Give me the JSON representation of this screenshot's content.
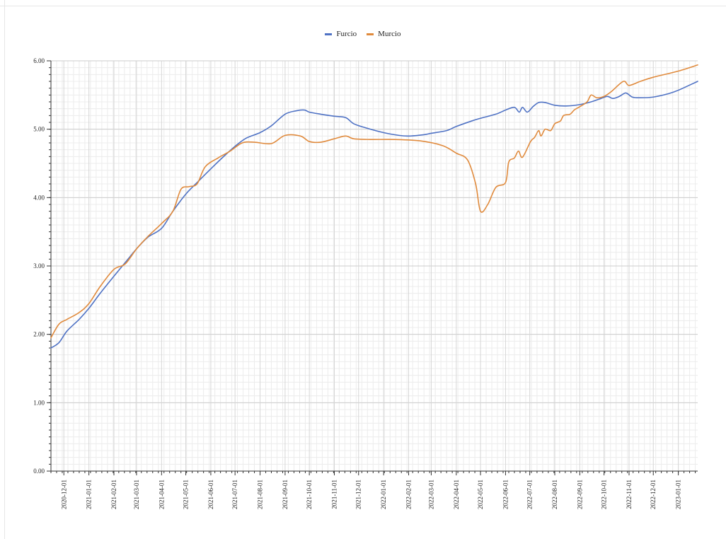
{
  "chart_data": {
    "type": "line",
    "title": "",
    "xlabel": "",
    "ylabel": "",
    "ylim": [
      0,
      6
    ],
    "y_ticks": [
      "0.00",
      "1.00",
      "2.00",
      "3.00",
      "4.00",
      "5.00",
      "6.00"
    ],
    "x_range": [
      "2020-11-15",
      "2023-01-25"
    ],
    "x_ticks": [
      "2020-12-01",
      "2021-01-01",
      "2021-02-01",
      "2021-03-01",
      "2021-04-01",
      "2021-05-01",
      "2021-06-01",
      "2021-07-01",
      "2021-08-01",
      "2021-09-01",
      "2021-10-01",
      "2021-11-01",
      "2021-12-01",
      "2022-01-01",
      "2022-02-01",
      "2022-03-01",
      "2022-04-01",
      "2022-05-01",
      "2022-06-01",
      "2022-07-01",
      "2022-08-01",
      "2022-09-01",
      "2022-10-01",
      "2022-11-01",
      "2022-12-01",
      "2023-01-01"
    ],
    "grid": true,
    "legend_position": "top",
    "series": [
      {
        "name": "Furcio",
        "color": "#4f72c4",
        "points": [
          [
            "2020-11-15",
            1.8
          ],
          [
            "2020-11-25",
            1.88
          ],
          [
            "2020-12-05",
            2.05
          ],
          [
            "2020-12-20",
            2.22
          ],
          [
            "2021-01-01",
            2.38
          ],
          [
            "2021-01-15",
            2.6
          ],
          [
            "2021-02-01",
            2.85
          ],
          [
            "2021-02-15",
            3.05
          ],
          [
            "2021-03-01",
            3.25
          ],
          [
            "2021-03-15",
            3.42
          ],
          [
            "2021-04-01",
            3.55
          ],
          [
            "2021-04-15",
            3.8
          ],
          [
            "2021-05-01",
            4.05
          ],
          [
            "2021-05-15",
            4.22
          ],
          [
            "2021-06-01",
            4.42
          ],
          [
            "2021-06-15",
            4.58
          ],
          [
            "2021-07-01",
            4.75
          ],
          [
            "2021-07-15",
            4.87
          ],
          [
            "2021-08-01",
            4.95
          ],
          [
            "2021-08-15",
            5.05
          ],
          [
            "2021-09-01",
            5.22
          ],
          [
            "2021-09-15",
            5.27
          ],
          [
            "2021-09-25",
            5.28
          ],
          [
            "2021-10-01",
            5.25
          ],
          [
            "2021-10-15",
            5.22
          ],
          [
            "2021-11-01",
            5.19
          ],
          [
            "2021-11-15",
            5.17
          ],
          [
            "2021-11-25",
            5.08
          ],
          [
            "2021-12-10",
            5.02
          ],
          [
            "2022-01-01",
            4.95
          ],
          [
            "2022-01-20",
            4.91
          ],
          [
            "2022-02-01",
            4.9
          ],
          [
            "2022-02-20",
            4.92
          ],
          [
            "2022-03-01",
            4.94
          ],
          [
            "2022-03-20",
            4.98
          ],
          [
            "2022-04-01",
            5.04
          ],
          [
            "2022-04-20",
            5.12
          ],
          [
            "2022-05-01",
            5.16
          ],
          [
            "2022-05-20",
            5.22
          ],
          [
            "2022-06-01",
            5.28
          ],
          [
            "2022-06-12",
            5.32
          ],
          [
            "2022-06-18",
            5.25
          ],
          [
            "2022-06-22",
            5.32
          ],
          [
            "2022-06-28",
            5.25
          ],
          [
            "2022-07-05",
            5.33
          ],
          [
            "2022-07-12",
            5.39
          ],
          [
            "2022-07-20",
            5.39
          ],
          [
            "2022-08-01",
            5.35
          ],
          [
            "2022-08-15",
            5.34
          ],
          [
            "2022-09-01",
            5.36
          ],
          [
            "2022-09-15",
            5.4
          ],
          [
            "2022-09-25",
            5.44
          ],
          [
            "2022-10-05",
            5.48
          ],
          [
            "2022-10-12",
            5.45
          ],
          [
            "2022-10-20",
            5.48
          ],
          [
            "2022-10-28",
            5.53
          ],
          [
            "2022-11-05",
            5.47
          ],
          [
            "2022-11-15",
            5.46
          ],
          [
            "2022-12-01",
            5.47
          ],
          [
            "2022-12-20",
            5.52
          ],
          [
            "2023-01-01",
            5.57
          ],
          [
            "2023-01-25",
            5.7
          ]
        ]
      },
      {
        "name": "Murcio",
        "color": "#e08a3c",
        "points": [
          [
            "2020-11-15",
            1.95
          ],
          [
            "2020-11-25",
            2.15
          ],
          [
            "2020-12-05",
            2.22
          ],
          [
            "2020-12-20",
            2.32
          ],
          [
            "2021-01-01",
            2.45
          ],
          [
            "2021-01-15",
            2.7
          ],
          [
            "2021-02-01",
            2.95
          ],
          [
            "2021-02-15",
            3.03
          ],
          [
            "2021-03-01",
            3.25
          ],
          [
            "2021-03-15",
            3.43
          ],
          [
            "2021-04-01",
            3.62
          ],
          [
            "2021-04-15",
            3.8
          ],
          [
            "2021-04-25",
            4.12
          ],
          [
            "2021-05-05",
            4.16
          ],
          [
            "2021-05-15",
            4.2
          ],
          [
            "2021-05-25",
            4.45
          ],
          [
            "2021-06-10",
            4.58
          ],
          [
            "2021-06-25",
            4.68
          ],
          [
            "2021-07-10",
            4.8
          ],
          [
            "2021-07-25",
            4.81
          ],
          [
            "2021-08-15",
            4.79
          ],
          [
            "2021-09-01",
            4.91
          ],
          [
            "2021-09-20",
            4.9
          ],
          [
            "2021-10-01",
            4.82
          ],
          [
            "2021-10-15",
            4.81
          ],
          [
            "2021-11-01",
            4.86
          ],
          [
            "2021-11-15",
            4.9
          ],
          [
            "2021-11-25",
            4.86
          ],
          [
            "2021-12-15",
            4.85
          ],
          [
            "2022-01-15",
            4.85
          ],
          [
            "2022-02-15",
            4.83
          ],
          [
            "2022-03-15",
            4.76
          ],
          [
            "2022-04-01",
            4.65
          ],
          [
            "2022-04-15",
            4.55
          ],
          [
            "2022-04-25",
            4.2
          ],
          [
            "2022-05-01",
            3.8
          ],
          [
            "2022-05-10",
            3.9
          ],
          [
            "2022-05-20",
            4.15
          ],
          [
            "2022-06-01",
            4.22
          ],
          [
            "2022-06-05",
            4.52
          ],
          [
            "2022-06-12",
            4.58
          ],
          [
            "2022-06-17",
            4.68
          ],
          [
            "2022-06-22",
            4.59
          ],
          [
            "2022-07-02",
            4.82
          ],
          [
            "2022-07-07",
            4.88
          ],
          [
            "2022-07-12",
            4.98
          ],
          [
            "2022-07-15",
            4.9
          ],
          [
            "2022-07-20",
            5.0
          ],
          [
            "2022-07-27",
            4.98
          ],
          [
            "2022-08-01",
            5.08
          ],
          [
            "2022-08-08",
            5.12
          ],
          [
            "2022-08-12",
            5.2
          ],
          [
            "2022-08-20",
            5.22
          ],
          [
            "2022-08-25",
            5.28
          ],
          [
            "2022-09-01",
            5.33
          ],
          [
            "2022-09-10",
            5.4
          ],
          [
            "2022-09-15",
            5.5
          ],
          [
            "2022-09-22",
            5.46
          ],
          [
            "2022-10-01",
            5.48
          ],
          [
            "2022-10-10",
            5.55
          ],
          [
            "2022-10-25",
            5.7
          ],
          [
            "2022-11-01",
            5.64
          ],
          [
            "2022-11-15",
            5.7
          ],
          [
            "2022-12-01",
            5.76
          ],
          [
            "2023-01-01",
            5.85
          ],
          [
            "2023-01-25",
            5.94
          ]
        ]
      }
    ]
  }
}
